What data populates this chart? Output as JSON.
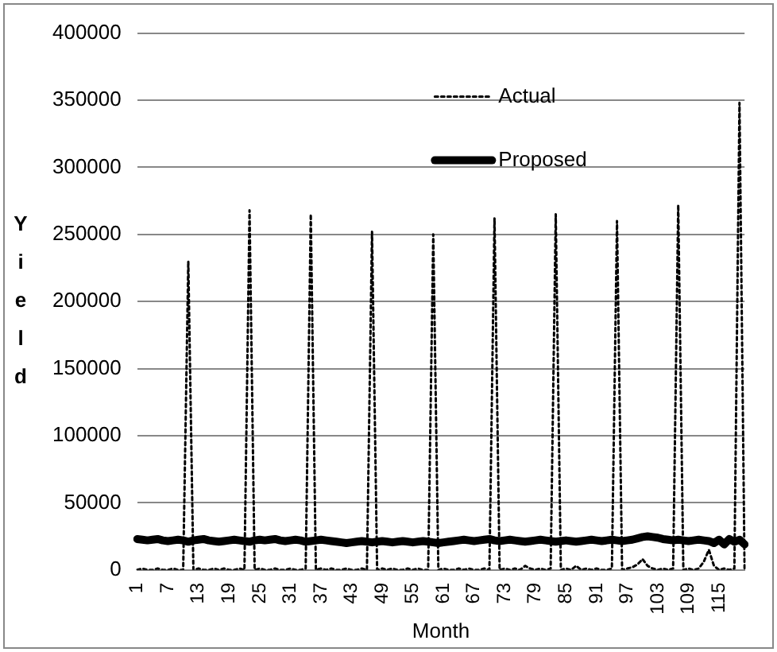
{
  "chart_data": {
    "type": "line",
    "xlabel": "Month",
    "ylabel": "Yield",
    "categories": [
      "1",
      null,
      null,
      null,
      null,
      null,
      "7",
      null,
      null,
      null,
      null,
      null,
      "13",
      null,
      null,
      null,
      null,
      null,
      "19",
      null,
      null,
      null,
      null,
      null,
      "25",
      null,
      null,
      null,
      null,
      null,
      "31",
      null,
      null,
      null,
      null,
      null,
      "37",
      null,
      null,
      null,
      null,
      null,
      "43",
      null,
      null,
      null,
      null,
      null,
      "49",
      null,
      null,
      null,
      null,
      null,
      "55",
      null,
      null,
      null,
      null,
      null,
      "61",
      null,
      null,
      null,
      null,
      null,
      "67",
      null,
      null,
      null,
      null,
      null,
      "73",
      null,
      null,
      null,
      null,
      null,
      "79",
      null,
      null,
      null,
      null,
      null,
      "85",
      null,
      null,
      null,
      null,
      null,
      "91",
      null,
      null,
      null,
      null,
      null,
      "97",
      null,
      null,
      null,
      null,
      null,
      "103",
      null,
      null,
      null,
      null,
      null,
      "109",
      null,
      null,
      null,
      null,
      null,
      "115",
      null,
      null,
      null,
      null,
      null
    ],
    "series": [
      {
        "name": "Actual",
        "color": "#000000",
        "line_style": "dotted",
        "values": [
          0,
          1000,
          0,
          0,
          1000,
          0,
          0,
          1000,
          0,
          0,
          230000,
          0,
          1000,
          0,
          0,
          1000,
          0,
          1000,
          0,
          0,
          1000,
          0,
          268000,
          0,
          1000,
          0,
          0,
          1000,
          0,
          0,
          1000,
          0,
          0,
          1000,
          265000,
          0,
          1000,
          0,
          1000,
          0,
          0,
          1000,
          0,
          0,
          1000,
          0,
          252000,
          0,
          1000,
          0,
          1000,
          0,
          0,
          1000,
          0,
          1000,
          0,
          0,
          250000,
          0,
          1000,
          0,
          0,
          1000,
          0,
          1000,
          0,
          0,
          1000,
          0,
          262000,
          0,
          1000,
          0,
          1000,
          0,
          3000,
          1000,
          0,
          1000,
          0,
          1000,
          265000,
          0,
          1000,
          0,
          3000,
          0,
          1000,
          0,
          1000,
          0,
          0,
          1000,
          260000,
          0,
          1000,
          2000,
          4000,
          8000,
          3000,
          1000,
          0,
          1000,
          0,
          1000,
          272000,
          0,
          1000,
          0,
          1000,
          6000,
          15000,
          3000,
          0,
          1000,
          0,
          1000,
          348000,
          0
        ]
      },
      {
        "name": "Proposed",
        "color": "#000000",
        "line_style": "solid",
        "values": [
          23000,
          22500,
          22000,
          22500,
          23000,
          22000,
          21500,
          22000,
          22500,
          22000,
          21000,
          22000,
          22500,
          23000,
          22000,
          21500,
          21000,
          21500,
          22000,
          22500,
          22000,
          21500,
          21000,
          22000,
          22500,
          22000,
          22500,
          23000,
          22000,
          21500,
          22000,
          22500,
          22000,
          21000,
          21500,
          22000,
          22500,
          22000,
          21500,
          21000,
          20500,
          20000,
          20500,
          21000,
          21500,
          21000,
          20500,
          21000,
          21500,
          21000,
          20500,
          21000,
          21500,
          21000,
          20500,
          21000,
          21500,
          21000,
          20500,
          20000,
          20500,
          21000,
          21500,
          22000,
          22500,
          22000,
          21500,
          22000,
          22500,
          23000,
          22000,
          21500,
          22000,
          22500,
          22000,
          21500,
          21000,
          21500,
          22000,
          22500,
          22000,
          21500,
          21000,
          21500,
          22000,
          21500,
          21000,
          21500,
          22000,
          22500,
          22000,
          21500,
          22000,
          22500,
          22000,
          21500,
          22000,
          22500,
          23500,
          24500,
          25000,
          24500,
          24000,
          23000,
          22500,
          22000,
          22500,
          22000,
          21500,
          22000,
          22500,
          22000,
          21500,
          20000,
          22500,
          19000,
          23000,
          21000,
          22500,
          19000
        ]
      }
    ],
    "ylim": [
      0,
      400000
    ],
    "yticks": [
      0,
      50000,
      100000,
      150000,
      200000,
      250000,
      300000,
      350000,
      400000
    ],
    "grid": "y",
    "legend": "top right",
    "marker": "none"
  }
}
